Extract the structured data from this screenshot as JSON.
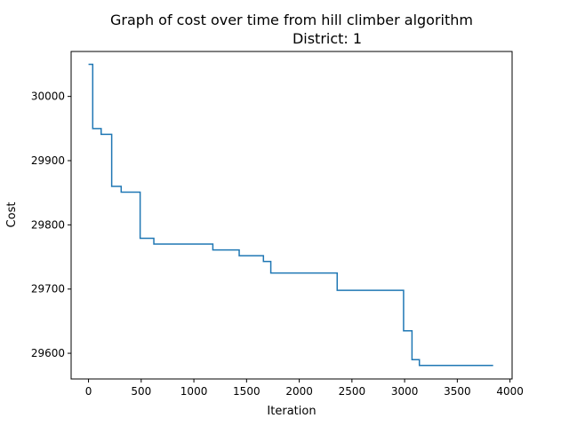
{
  "chart_data": {
    "type": "line",
    "title_lines": [
      "Graph of cost over time from hill climber algorithm",
      "District: 1"
    ],
    "xlabel": "Iteration",
    "ylabel": "Cost",
    "xlim": [
      -165,
      4020
    ],
    "ylim": [
      29560,
      30070
    ],
    "x_ticks": [
      0,
      500,
      1000,
      1500,
      2000,
      2500,
      3000,
      3500,
      4000
    ],
    "x_tick_labels": [
      "0",
      "500",
      "1000",
      "1500",
      "2000",
      "2500",
      "3000",
      "3500",
      "4000"
    ],
    "y_ticks": [
      29600,
      29700,
      29800,
      29900,
      30000
    ],
    "y_tick_labels": [
      "29600",
      "29700",
      "29800",
      "29900",
      "30000"
    ],
    "grid": false,
    "legend": "none",
    "line_color": "#1f77b4",
    "series": [
      {
        "step": "post",
        "x": [
          0,
          40,
          120,
          220,
          310,
          490,
          620,
          1180,
          1430,
          1660,
          1730,
          2360,
          2990,
          3070,
          3140,
          3840
        ],
        "y": [
          30050,
          29950,
          29941,
          29860,
          29851,
          29779,
          29770,
          29761,
          29752,
          29743,
          29725,
          29698,
          29635,
          29590,
          29581,
          29581
        ]
      }
    ]
  }
}
